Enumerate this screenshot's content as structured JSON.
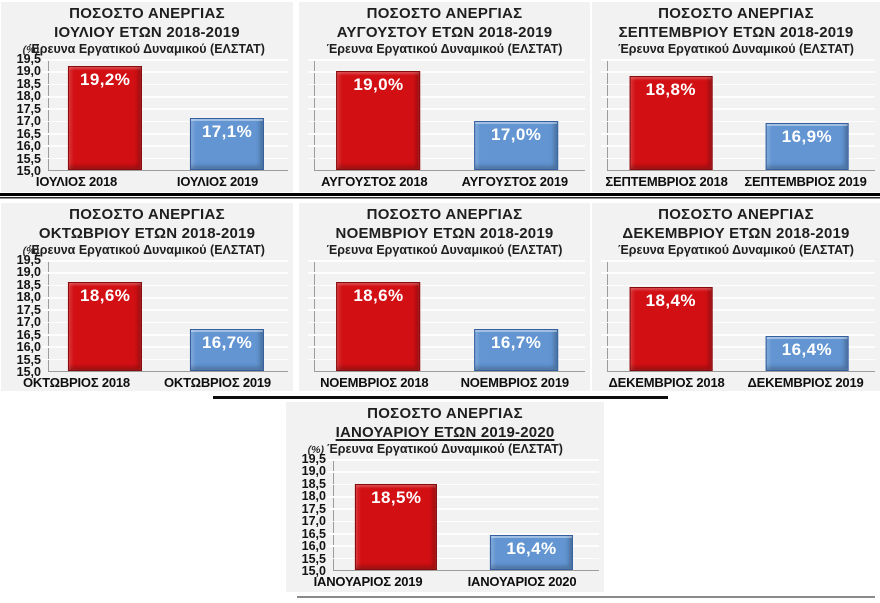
{
  "chart_data": {
    "type": "bar",
    "title_line1": "ΠΟΣΟΣΤΟ ΑΝΕΡΓΙΑΣ",
    "subtitle": "Έρευνα Εργατικού Δυναμικού (ΕΛΣΤΑΤ)",
    "ylabel": "(%)",
    "ylim": [
      15.0,
      19.5
    ],
    "yticks": [
      "19,5",
      "19,0",
      "18,5",
      "18,0",
      "17,5",
      "17,0",
      "16,5",
      "16,0",
      "15,5",
      "15,0"
    ],
    "grid": true,
    "legend": "none",
    "colors": {
      "red": {
        "fill": "#d21014",
        "border": "#860b0d"
      },
      "blue": {
        "fill": "#6295d2",
        "border": "#355f9e"
      },
      "panel_bg": "#f2f2f2",
      "gridline": "#fdfdfd"
    },
    "charts": [
      {
        "id": "july",
        "title_line2": "ΙΟΥΛΙΟΥ ΕΤΩΝ 2018-2019",
        "underline": false,
        "show_yticks": true,
        "bars": [
          {
            "category": "ΙΟΥΛΙΟΣ 2018",
            "value": 19.2,
            "label": "19,2%",
            "color": "red"
          },
          {
            "category": "ΙΟΥΛΙΟΣ 2019",
            "value": 17.1,
            "label": "17,1%",
            "color": "blue"
          }
        ]
      },
      {
        "id": "august",
        "title_line2": "ΑΥΓΟΥΣΤΟΥ ΕΤΩΝ 2018-2019",
        "underline": false,
        "show_yticks": false,
        "bars": [
          {
            "category": "ΑΥΓΟΥΣΤΟΣ 2018",
            "value": 19.0,
            "label": "19,0%",
            "color": "red"
          },
          {
            "category": "ΑΥΓΟΥΣΤΟΣ 2019",
            "value": 17.0,
            "label": "17,0%",
            "color": "blue"
          }
        ]
      },
      {
        "id": "september",
        "title_line2": "ΣΕΠΤΕΜΒΡΙΟΥ ΕΤΩΝ 2018-2019",
        "underline": false,
        "show_yticks": false,
        "bars": [
          {
            "category": "ΣΕΠΤΕΜΒΡΙΟΣ 2018",
            "value": 18.8,
            "label": "18,8%",
            "color": "red"
          },
          {
            "category": "ΣΕΠΤΕΜΒΡΙΟΣ 2019",
            "value": 16.9,
            "label": "16,9%",
            "color": "blue"
          }
        ]
      },
      {
        "id": "october",
        "title_line2": "ΟΚΤΩΒΡΙΟΥ ΕΤΩΝ 2018-2019",
        "underline": false,
        "show_yticks": true,
        "bars": [
          {
            "category": "ΟΚΤΩΒΡΙΟΣ 2018",
            "value": 18.6,
            "label": "18,6%",
            "color": "red"
          },
          {
            "category": "ΟΚΤΩΒΡΙΟΣ 2019",
            "value": 16.7,
            "label": "16,7%",
            "color": "blue"
          }
        ]
      },
      {
        "id": "november",
        "title_line2": "ΝΟΕΜΒΡΙΟΥ ΕΤΩΝ 2018-2019",
        "underline": false,
        "show_yticks": false,
        "bars": [
          {
            "category": "ΝΟΕΜΒΡΙΟΣ 2018",
            "value": 18.6,
            "label": "18,6%",
            "color": "red"
          },
          {
            "category": "ΝΟΕΜΒΡΙΟΣ 2019",
            "value": 16.7,
            "label": "16,7%",
            "color": "blue"
          }
        ]
      },
      {
        "id": "december",
        "title_line2": "ΔΕΚΕΜΒΡΙΟΥ ΕΤΩΝ 2018-2019",
        "underline": false,
        "show_yticks": false,
        "bars": [
          {
            "category": "ΔΕΚΕΜΒΡΙΟΣ 2018",
            "value": 18.4,
            "label": "18,4%",
            "color": "red"
          },
          {
            "category": "ΔΕΚΕΜΒΡΙΟΣ 2019",
            "value": 16.4,
            "label": "16,4%",
            "color": "blue"
          }
        ]
      },
      {
        "id": "january",
        "title_line2": "ΙΑΝΟΥΑΡΙΟΥ ΕΤΩΝ 2019-2020",
        "underline": true,
        "show_yticks": true,
        "bars": [
          {
            "category": "ΙΑΝΟΥΑΡΙΟΣ 2019",
            "value": 18.5,
            "label": "18,5%",
            "color": "red"
          },
          {
            "category": "ΙΑΝΟΥΑΡΙΟΣ 2020",
            "value": 16.4,
            "label": "16,4%",
            "color": "blue"
          }
        ]
      }
    ]
  }
}
